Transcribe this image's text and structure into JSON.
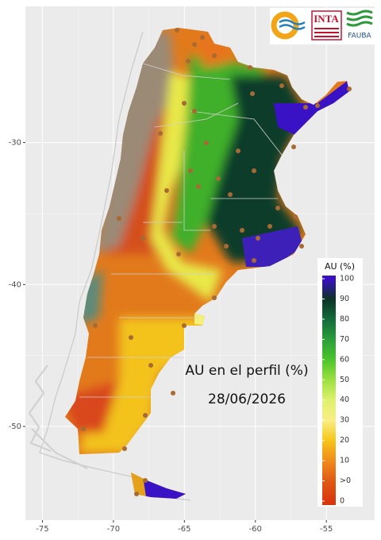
{
  "map": {
    "xlim": [
      -76.2,
      -51.6
    ],
    "ylim": [
      -56.6,
      -20.4
    ],
    "xticks": [
      -75,
      -70,
      -65,
      -60,
      -55
    ],
    "yticks": [
      -30,
      -40,
      -50
    ]
  },
  "annotation": {
    "title": "AU en el perfil (%)",
    "date": "28/06/2026"
  },
  "legend": {
    "title": "AU (%)",
    "labels": [
      "100",
      "90",
      "80",
      "70",
      "60",
      "50",
      "40",
      "30",
      "20",
      "10",
      ">0",
      "0"
    ],
    "colors": [
      "#3a0fc4",
      "#0b3327",
      "#136b3a",
      "#2a9e3a",
      "#4bc42c",
      "#9be040",
      "#dff06e",
      "#f8ee86",
      "#f7c61a",
      "#ef8c1a",
      "#e05a14",
      "#d9380e"
    ]
  },
  "logos": {
    "inta": "INTA",
    "fauba": "FAUBA"
  }
}
